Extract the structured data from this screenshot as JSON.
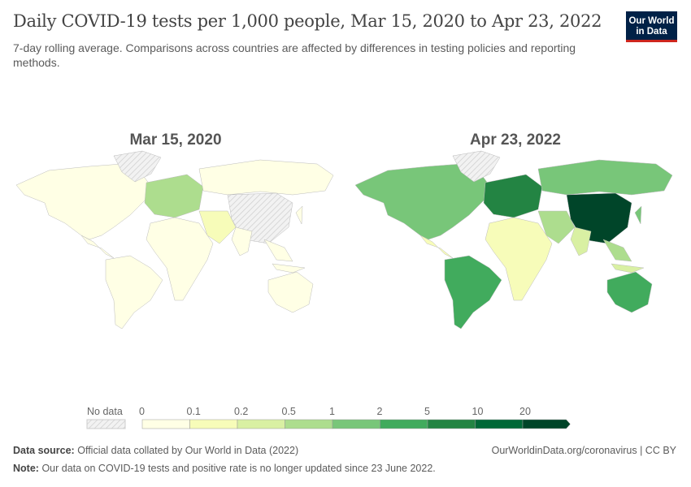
{
  "header": {
    "title": "Daily COVID-19 tests per 1,000 people, Mar 15, 2020 to Apr 23, 2022",
    "subtitle": "7-day rolling average. Comparisons across countries are affected by differences in testing policies and reporting methods.",
    "logo": "Our World in Data"
  },
  "chart_data": {
    "type": "choropleth-map",
    "maps": [
      {
        "date": "Mar 15, 2020",
        "region_bins": {
          "north-america": 0,
          "central-america": 0,
          "greenland": "no-data",
          "south-america": 0,
          "europe": 3,
          "africa": 0,
          "russia": 0,
          "middle-east": 1,
          "china": "no-data",
          "india": 0,
          "southeast-asia": 0,
          "indonesia": 0,
          "australia": 0,
          "japan": 0
        }
      },
      {
        "date": "Apr 23, 2022",
        "region_bins": {
          "north-america": 4,
          "central-america": 1,
          "greenland": "no-data",
          "south-america": 5,
          "europe": 6,
          "africa": 1,
          "russia": 4,
          "middle-east": 3,
          "china": 8,
          "india": 2,
          "southeast-asia": 3,
          "indonesia": 2,
          "australia": 5,
          "japan": 4
        }
      }
    ],
    "legend": {
      "no_data_label": "No data",
      "ticks": [
        "0",
        "0.1",
        "0.2",
        "0.5",
        "1",
        "2",
        "5",
        "10",
        "20"
      ],
      "colors": [
        "#ffffe5",
        "#f7fcb9",
        "#d9f0a3",
        "#addd8e",
        "#78c679",
        "#41ab5d",
        "#238443",
        "#006837",
        "#004529"
      ],
      "no_data_color": "#e8e8e8"
    }
  },
  "footer": {
    "source_label": "Data source:",
    "source": "Official data collated by Our World in Data (2022)",
    "url": "OurWorldinData.org/coronavirus | CC BY",
    "note_label": "Note:",
    "note": "Our data on COVID-19 tests and positive rate is no longer updated since 23 June 2022."
  }
}
